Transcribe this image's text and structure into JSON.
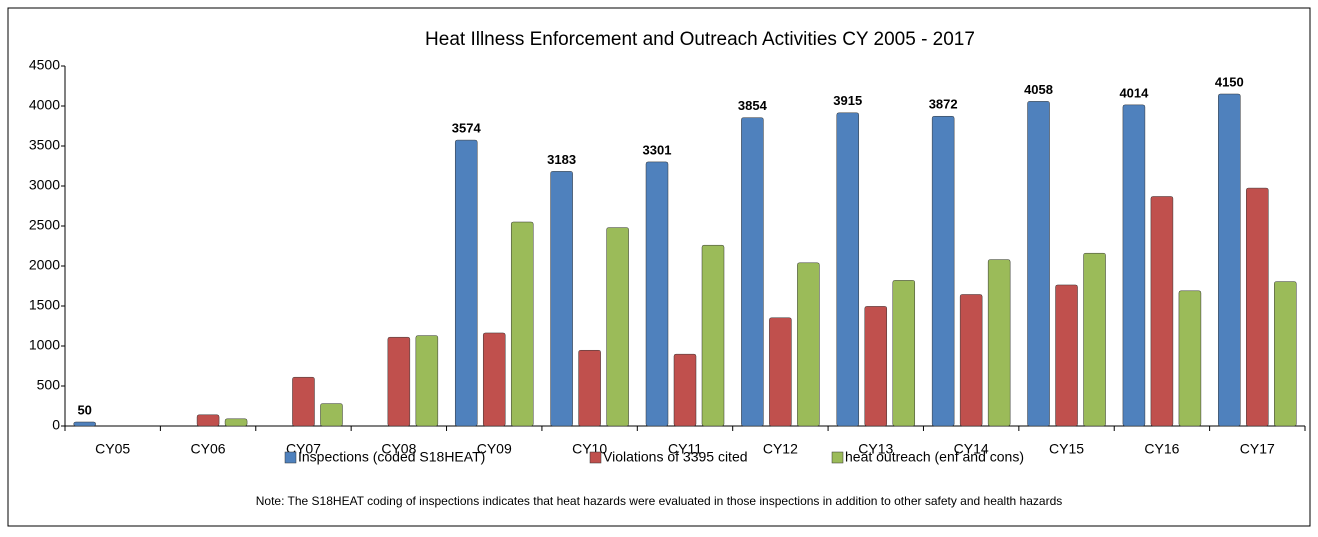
{
  "chart_data": {
    "type": "bar",
    "title": "Heat Illness Enforcement  and Outreach Activities CY 2005 - 2017",
    "note": "Note: The S18HEAT coding of inspections indicates that heat hazards were evaluated in those inspections in addition to other safety and health hazards",
    "categories": [
      "CY05",
      "CY06",
      "CY07",
      "CY08",
      "CY09",
      "CY10",
      "CY11",
      "CY12",
      "CY13",
      "CY14",
      "CY15",
      "CY16",
      "CY17"
    ],
    "series": [
      {
        "name": "Inspections (coded S18HEAT)",
        "color": "#4f81bd",
        "data_labels": true,
        "values": [
          50,
          null,
          null,
          null,
          3574,
          3183,
          3301,
          3854,
          3915,
          3872,
          4058,
          4014,
          4150
        ]
      },
      {
        "name": "Violations of 3395 cited",
        "color": "#c0504d",
        "values": [
          null,
          140,
          610,
          1110,
          1163,
          947,
          898,
          1353,
          1495,
          1644,
          1763,
          2869,
          2974
        ]
      },
      {
        "name": "heat outreach (enf and cons)",
        "color": "#9bbb59",
        "values": [
          null,
          90,
          280,
          1130,
          2550,
          2480,
          2260,
          2040,
          1820,
          2080,
          2160,
          1690,
          1805
        ]
      }
    ],
    "ylim": [
      0,
      4500
    ],
    "yticks": [
      0,
      500,
      1000,
      1500,
      2000,
      2500,
      3000,
      3500,
      4000,
      4500
    ],
    "grid": false
  }
}
